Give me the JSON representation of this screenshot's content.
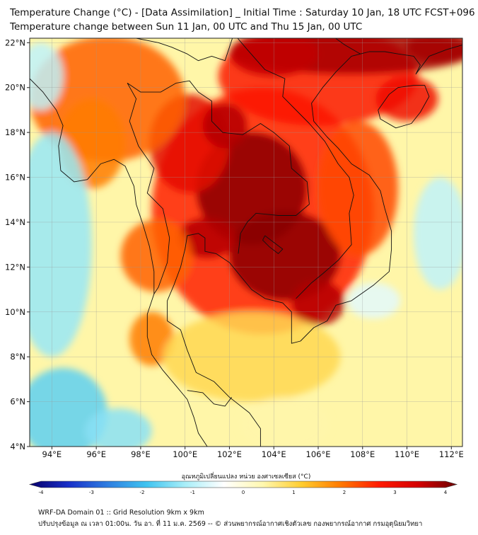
{
  "title": {
    "line1": "Temperature Change (°C) - [Data Assimilation] _ Initial Time : Saturday 10 Jan, 18 UTC FCST+096",
    "line2": "Temperature change between Sun 11 Jan, 00 UTC and Thu 15 Jan, 00 UTC"
  },
  "map": {
    "lon_range": [
      93,
      112.5
    ],
    "lat_range": [
      4,
      22.2
    ],
    "lon_ticks": [
      {
        "value": 94,
        "label": "94°E"
      },
      {
        "value": 96,
        "label": "96°E"
      },
      {
        "value": 98,
        "label": "98°E"
      },
      {
        "value": 100,
        "label": "100°E"
      },
      {
        "value": 102,
        "label": "102°E"
      },
      {
        "value": 104,
        "label": "104°E"
      },
      {
        "value": 106,
        "label": "106°E"
      },
      {
        "value": 108,
        "label": "108°E"
      },
      {
        "value": 110,
        "label": "110°E"
      },
      {
        "value": 112,
        "label": "112°E"
      }
    ],
    "lat_ticks": [
      {
        "value": 4,
        "label": "4°N"
      },
      {
        "value": 6,
        "label": "6°N"
      },
      {
        "value": 8,
        "label": "8°N"
      },
      {
        "value": 10,
        "label": "10°N"
      },
      {
        "value": 12,
        "label": "12°N"
      },
      {
        "value": 14,
        "label": "14°N"
      },
      {
        "value": 16,
        "label": "16°N"
      },
      {
        "value": 18,
        "label": "18°N"
      },
      {
        "value": 20,
        "label": "20°N"
      },
      {
        "value": 22,
        "label": "22°N"
      }
    ],
    "field_blobs": [
      {
        "lon": 103.5,
        "lat": 14.5,
        "rlon": 5.0,
        "rlat": 5.5,
        "value": 2.5
      },
      {
        "lon": 103.0,
        "lat": 15.5,
        "rlon": 2.5,
        "rlat": 2.5,
        "value": 3.8
      },
      {
        "lon": 104.5,
        "lat": 12.5,
        "rlon": 2.5,
        "rlat": 2.0,
        "value": 3.8
      },
      {
        "lon": 101.0,
        "lat": 13.3,
        "rlon": 1.3,
        "rlat": 0.9,
        "value": 3.5
      },
      {
        "lon": 106.0,
        "lat": 10.4,
        "rlon": 1.2,
        "rlat": 1.0,
        "value": 3.5
      },
      {
        "lon": 100.2,
        "lat": 17.5,
        "rlon": 1.8,
        "rlat": 2.2,
        "value": 3.0
      },
      {
        "lon": 101.8,
        "lat": 18.3,
        "rlon": 1.0,
        "rlat": 1.0,
        "value": 3.5
      },
      {
        "lon": 106.0,
        "lat": 20.5,
        "rlon": 4.5,
        "rlat": 2.2,
        "value": 2.6
      },
      {
        "lon": 107.5,
        "lat": 21.6,
        "rlon": 5.5,
        "rlat": 1.0,
        "value": 3.6
      },
      {
        "lon": 104.0,
        "lat": 21.5,
        "rlon": 2.0,
        "rlat": 1.0,
        "value": 3.4
      },
      {
        "lon": 111.5,
        "lat": 21.8,
        "rlon": 1.5,
        "rlat": 0.7,
        "value": 3.6
      },
      {
        "lon": 110.0,
        "lat": 19.5,
        "rlon": 1.4,
        "rlat": 1.0,
        "value": 2.8
      },
      {
        "lon": 96.5,
        "lat": 19.5,
        "rlon": 3.5,
        "rlat": 2.8,
        "value": 2.0
      },
      {
        "lon": 95.8,
        "lat": 17.5,
        "rlon": 1.5,
        "rlat": 2.0,
        "value": 1.8
      },
      {
        "lon": 98.7,
        "lat": 12.5,
        "rlon": 1.6,
        "rlat": 1.6,
        "value": 2.0
      },
      {
        "lon": 98.5,
        "lat": 8.8,
        "rlon": 1.0,
        "rlat": 1.2,
        "value": 1.8
      },
      {
        "lon": 107.8,
        "lat": 15.5,
        "rlon": 1.8,
        "rlat": 3.0,
        "value": 2.2
      },
      {
        "lon": 103.0,
        "lat": 8.0,
        "rlon": 4.0,
        "rlat": 2.0,
        "value": 0.9
      },
      {
        "lon": 94.0,
        "lat": 13.0,
        "rlon": 1.8,
        "rlat": 5.0,
        "value": -1.2
      },
      {
        "lon": 94.5,
        "lat": 5.5,
        "rlon": 2.0,
        "rlat": 2.0,
        "value": -1.6
      },
      {
        "lon": 97.0,
        "lat": 4.7,
        "rlon": 1.5,
        "rlat": 1.0,
        "value": -1.3
      },
      {
        "lon": 93.5,
        "lat": 20.5,
        "rlon": 1.0,
        "rlat": 1.5,
        "value": -0.9
      },
      {
        "lon": 111.5,
        "lat": 13.5,
        "rlon": 1.2,
        "rlat": 2.5,
        "value": -0.9
      },
      {
        "lon": 108.5,
        "lat": 10.5,
        "rlon": 1.2,
        "rlat": 0.8,
        "value": -0.6
      },
      {
        "lon": 104.5,
        "lat": 5.0,
        "rlon": 2.0,
        "rlat": 1.2,
        "value": 0.4
      }
    ]
  },
  "colorbar": {
    "title": "อุณหภูมิเปลี่ยนแปลง หน่วย องศาเซลเซียส (°C)",
    "min": -4,
    "max": 4,
    "ticks": [
      {
        "value": -4,
        "label": "-4"
      },
      {
        "value": -3,
        "label": "-3"
      },
      {
        "value": -2,
        "label": "-2"
      },
      {
        "value": -1,
        "label": "-1"
      },
      {
        "value": 0,
        "label": "0"
      },
      {
        "value": 1,
        "label": "1"
      },
      {
        "value": 2,
        "label": "2"
      },
      {
        "value": 3,
        "label": "3"
      },
      {
        "value": 4,
        "label": "4"
      }
    ],
    "colors": [
      "#08006b",
      "#1830c8",
      "#2f7de0",
      "#3fc3f0",
      "#a8eef8",
      "#ffffff",
      "#fff8b0",
      "#ffcd30",
      "#ff7a00",
      "#ff1a00",
      "#d40000",
      "#6e0000"
    ]
  },
  "footer": {
    "line1": "WRF-DA Domain 01 :: Grid Resolution 9km x 9km",
    "line2": "ปรับปรุงข้อมูล ณ เวลา 01:00น. วัน อา. ที่ 11 ม.ค. 2569 -- © ส่วนพยากรณ์อากาศเชิงตัวเลข กองพยากรณ์อากาศ กรมอุตุนิยมวิทยา"
  }
}
